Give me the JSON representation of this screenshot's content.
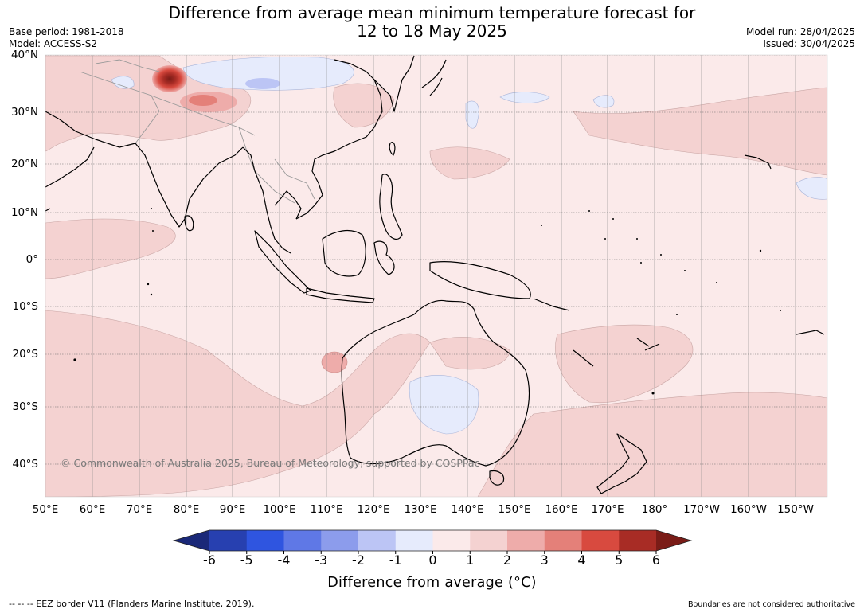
{
  "title": {
    "line1": "Difference from average mean minimum temperature forecast for",
    "line2": "12 to 18 May 2025"
  },
  "meta_left": {
    "base_period": "Base period: 1981-2018",
    "model": "Model: ACCESS-S2"
  },
  "meta_right": {
    "model_run": "Model run: 28/04/2025",
    "issued": "Issued: 30/04/2025"
  },
  "copyright": "© Commonwealth of Australia 2025, Bureau of Meteorology, supported by COSPPac",
  "lat_labels": [
    "40°N",
    "30°N",
    "20°N",
    "10°N",
    "0°",
    "10°S",
    "20°S",
    "30°S",
    "40°S"
  ],
  "lon_labels": [
    "50°E",
    "60°E",
    "70°E",
    "80°E",
    "90°E",
    "100°E",
    "110°E",
    "120°E",
    "130°E",
    "140°E",
    "150°E",
    "160°E",
    "170°E",
    "180°",
    "170°W",
    "160°W",
    "150°W"
  ],
  "colorbar": {
    "ticks": [
      "-6",
      "-5",
      "-4",
      "-3",
      "-2",
      "-1",
      "0",
      "1",
      "2",
      "3",
      "4",
      "5",
      "6"
    ],
    "colors": [
      "#1a2878",
      "#2740b0",
      "#2f55e0",
      "#5f78e6",
      "#8c9cec",
      "#bcc5f5",
      "#e6ebfc",
      "#fbeaea",
      "#f4d2d1",
      "#eeacaa",
      "#e48079",
      "#d84a3f",
      "#a82c25",
      "#7a1c17"
    ],
    "title": "Difference from average ($^\\circ$C)",
    "title_display": "Difference from average (°C)"
  },
  "footer_left": "--  --  -- EEZ border V11 (Flanders Marine Institute, 2019).",
  "footer_right": "Boundaries are not considered authoritative",
  "map_colors": {
    "background_anomaly": "#fbeaea",
    "warm_anomaly": "#f4d2d1",
    "strong_warm": "#e48079",
    "cool_anomaly": "#e6ebfc",
    "coastline": "#000000",
    "gridline": "#888888"
  }
}
